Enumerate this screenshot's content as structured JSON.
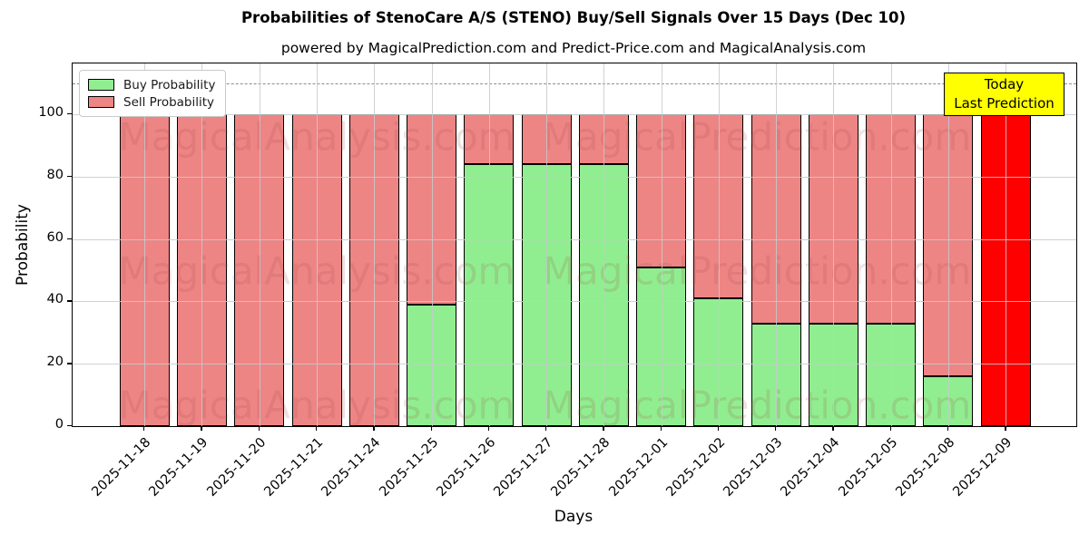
{
  "title": "Probabilities of StenoCare A/S (STENO) Buy/Sell Signals Over 15 Days (Dec 10)",
  "subtitle": "powered by MagicalPrediction.com and Predict-Price.com and MagicalAnalysis.com",
  "axes": {
    "x_label": "Days",
    "y_label": "Probability"
  },
  "legend": {
    "buy_label": "Buy Probability",
    "sell_label": "Sell Probability"
  },
  "annotation_box": {
    "line1": "Today",
    "line2": "Last Prediction",
    "bg_color": "#FFFF00"
  },
  "watermarks": {
    "left_text": "MagicalAnalysis.com",
    "right_text": "MagicalPrediction.com"
  },
  "colors": {
    "buy": "#90EE90",
    "sell": "#EE8585",
    "last_prediction_bar": "#FF0000",
    "grid": "#C6CACD",
    "dashed_line": "#8C8C8C",
    "bar_edge": "#000000"
  },
  "chart_data": {
    "type": "bar",
    "stacked": true,
    "title": "Probabilities of StenoCare A/S (STENO) Buy/Sell Signals Over 15 Days (Dec 10)",
    "xlabel": "Days",
    "ylabel": "Probability",
    "categories": [
      "2025-11-18",
      "2025-11-19",
      "2025-11-20",
      "2025-11-21",
      "2025-11-24",
      "2025-11-25",
      "2025-11-26",
      "2025-11-27",
      "2025-11-28",
      "2025-12-01",
      "2025-12-02",
      "2025-12-03",
      "2025-12-04",
      "2025-12-05",
      "2025-12-08",
      "2025-12-09"
    ],
    "series": [
      {
        "name": "Buy Probability",
        "values": [
          0,
          0,
          0,
          0,
          0,
          39,
          84,
          84,
          84,
          51,
          41,
          33,
          33,
          33,
          16,
          0
        ]
      },
      {
        "name": "Sell Probability",
        "values": [
          100,
          100,
          100,
          100,
          100,
          61,
          16,
          16,
          16,
          49,
          59,
          67,
          67,
          67,
          84,
          100
        ]
      }
    ],
    "highlight_last_bar": true,
    "yticks": [
      0,
      20,
      40,
      60,
      80,
      100
    ],
    "ylim": [
      0,
      116.3
    ],
    "threshold_dashed_y": 110,
    "grid": true,
    "legend_position": "upper left"
  }
}
